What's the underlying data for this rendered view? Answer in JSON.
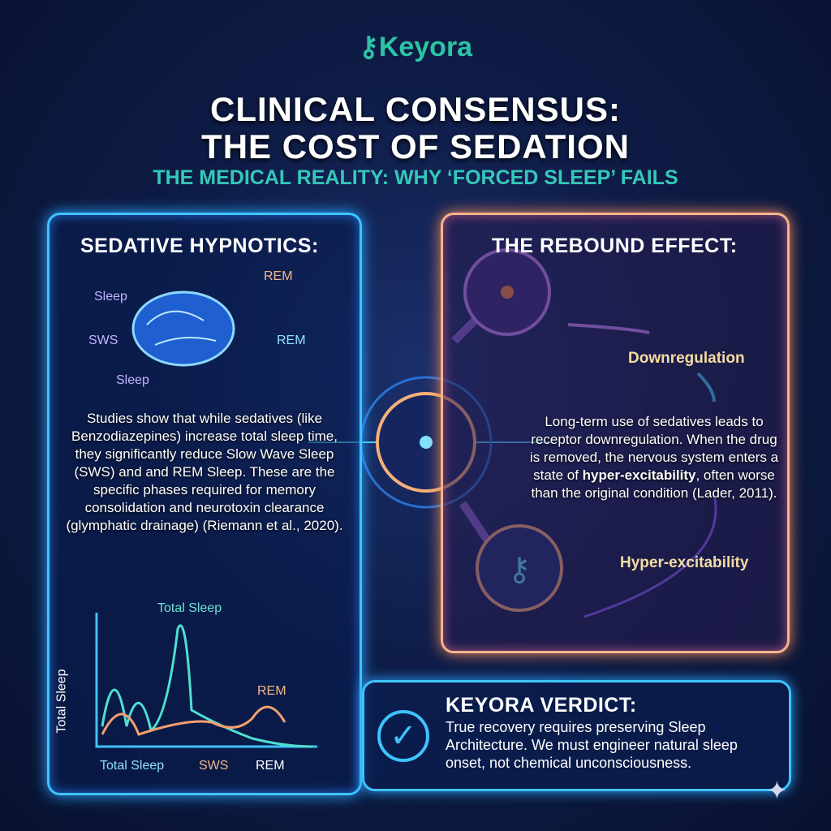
{
  "logo": {
    "text": "Keyora",
    "color": "#2cc4a4",
    "icon": "key-icon"
  },
  "title": {
    "line1": "CLINICAL CONSENSUS:",
    "line2": "THE COST OF SEDATION"
  },
  "subtitle": "THE MEDICAL REALITY: WHY ‘FORCED SLEEP’ FAILS",
  "left_panel": {
    "heading": "SEDATIVE HYPNOTICS:",
    "brain_labels": {
      "sleep_top": "Sleep",
      "rem_top": "REM",
      "sws": "SWS",
      "rem_right": "REM",
      "sleep_bottom": "Sleep"
    },
    "body": "Studies show that while sedatives (like Benzodiazepines) increase total sleep time, they significantly reduce Slow Wave Sleep (SWS) and and REM Sleep. These are the specific phases required for memory consolidation and neurotoxin clearance (glymphatic drainage) (Riemann et al., 2020).",
    "graph": {
      "peak_label": "Total Sleep",
      "rem_label": "REM",
      "y_axis": "Total Sleep",
      "x_labels": [
        "Total Sleep",
        "SWS",
        "REM"
      ]
    }
  },
  "right_panel": {
    "heading": "THE REBOUND EFFECT:",
    "downregulation": "Downregulation",
    "hyper": "Hyper-excitability",
    "body_pre": "Long-term use of sedatives leads to receptor downregulation. When the drug is removed, the nervous system enters a state of ",
    "body_bold": "hyper-excitability",
    "body_post": ", often worse than the original condition (Lader, 2011)."
  },
  "verdict": {
    "heading": "KEYORA VERDICT:",
    "body": "True recovery requires preserving Sleep Architecture. We must engineer natural sleep onset, not chemical unconsciousness.",
    "icon": "checkmark-icon"
  },
  "colors": {
    "cyan": "#3fc3ff",
    "orange": "#f3b58a",
    "teal": "#35c8b8",
    "purple": "#a66bff"
  }
}
